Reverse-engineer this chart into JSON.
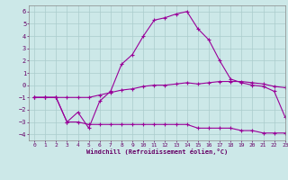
{
  "xlabel": "Windchill (Refroidissement éolien,°C)",
  "background_color": "#cce8e8",
  "grid_color": "#aacccc",
  "line_color": "#990099",
  "xlim": [
    -0.5,
    23
  ],
  "ylim": [
    -4.5,
    6.5
  ],
  "xticks": [
    0,
    1,
    2,
    3,
    4,
    5,
    6,
    7,
    8,
    9,
    10,
    11,
    12,
    13,
    14,
    15,
    16,
    17,
    18,
    19,
    20,
    21,
    22,
    23
  ],
  "yticks": [
    -4,
    -3,
    -2,
    -1,
    0,
    1,
    2,
    3,
    4,
    5,
    6
  ],
  "curve1_x": [
    0,
    1,
    2,
    3,
    4,
    5,
    6,
    7,
    8,
    9,
    10,
    11,
    12,
    13,
    14,
    15,
    16,
    17,
    18,
    19,
    20,
    21,
    22,
    23
  ],
  "curve1_y": [
    -1.0,
    -1.0,
    -1.0,
    -3.0,
    -2.2,
    -3.5,
    -1.3,
    -0.5,
    1.7,
    2.5,
    4.0,
    5.3,
    5.5,
    5.8,
    6.0,
    4.6,
    3.7,
    2.0,
    0.5,
    0.2,
    0.0,
    -0.1,
    -0.5,
    -2.6
  ],
  "curve2_x": [
    0,
    1,
    2,
    3,
    4,
    5,
    6,
    7,
    8,
    9,
    10,
    11,
    12,
    13,
    14,
    15,
    16,
    17,
    18,
    19,
    20,
    21,
    22,
    23
  ],
  "curve2_y": [
    -1.0,
    -1.0,
    -1.0,
    -3.0,
    -3.0,
    -3.2,
    -3.2,
    -3.2,
    -3.2,
    -3.2,
    -3.2,
    -3.2,
    -3.2,
    -3.2,
    -3.2,
    -3.5,
    -3.5,
    -3.5,
    -3.5,
    -3.7,
    -3.7,
    -3.9,
    -3.9,
    -3.9
  ],
  "curve3_x": [
    0,
    1,
    2,
    3,
    4,
    5,
    6,
    7,
    8,
    9,
    10,
    11,
    12,
    13,
    14,
    15,
    16,
    17,
    18,
    19,
    20,
    21,
    22,
    23
  ],
  "curve3_y": [
    -1.0,
    -1.0,
    -1.0,
    -1.0,
    -1.0,
    -1.0,
    -0.8,
    -0.6,
    -0.4,
    -0.3,
    -0.1,
    0.0,
    0.0,
    0.1,
    0.2,
    0.1,
    0.2,
    0.3,
    0.3,
    0.3,
    0.2,
    0.1,
    -0.1,
    -0.2
  ]
}
